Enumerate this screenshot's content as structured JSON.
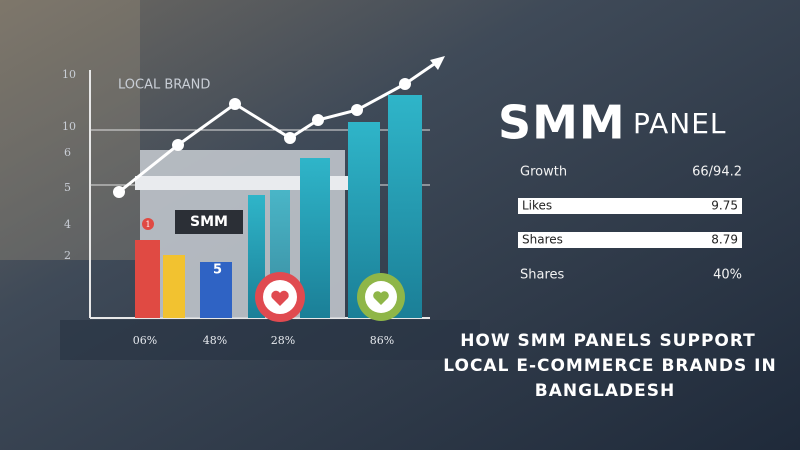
{
  "header": {
    "brand_main": "SMM",
    "brand_sub": "PANEL"
  },
  "illustration": {
    "axis_labels": [
      "10",
      "10",
      "6",
      "5",
      "4",
      "2"
    ],
    "chart_label": "LOCAL BRAND",
    "sign": "SMM",
    "box_label": "5",
    "badge": "1",
    "bottom_labels": [
      "06%",
      "48%",
      "28%",
      "86%"
    ]
  },
  "stats": {
    "rows": [
      {
        "label": "Growth",
        "value": "66/94.2"
      },
      {
        "label": "Likes",
        "value": "9.75"
      },
      {
        "label": "Shares",
        "value": "8.79"
      },
      {
        "label": "Shares",
        "value": "40%"
      }
    ]
  },
  "title": [
    "HOW SMM PANELS SUPPORT",
    "LOCAL E-COMMERCE BRANDS IN",
    "BANGLADESH"
  ]
}
